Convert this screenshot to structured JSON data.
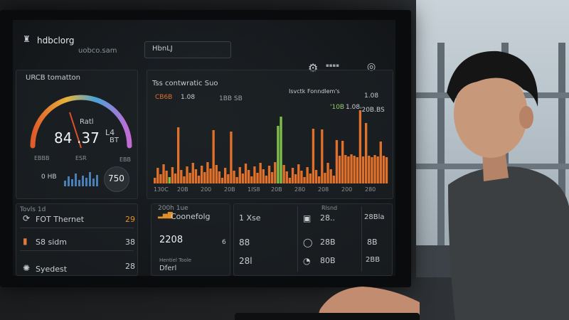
{
  "header": {
    "app_name": "hdbclorg",
    "sub_title": "uobco.sam",
    "search_value": "HbnLJ"
  },
  "gauge_panel": {
    "title": "URCB tomatton",
    "reading": "84",
    "reading2": ".37",
    "unit": "L4",
    "sub": "Ratl",
    "sub2": "BT",
    "tick_left": "EBBB",
    "tick_mid": "ESR",
    "tick_right": "EBB",
    "mini_label": "0 HB",
    "badge_value": "750"
  },
  "histogram_panel": {
    "title": "Tss contwratic Suo",
    "legend_1": "CB6B",
    "legend_2": "1.08",
    "legend_3": "1BB SB",
    "right_title": "Isvctk Fonndlem's",
    "right_value_1": "1.08",
    "right_value_2": "'10B",
    "right_value_3": "1.08",
    "right_value_4": "'20B.BS",
    "x_labels": [
      "130C",
      "20B",
      "200",
      "20B",
      "1IS8",
      "20B",
      "280",
      "208",
      "200",
      "280"
    ]
  },
  "lower_left": {
    "title": "Tovls 1d",
    "rows": [
      {
        "label": "FOT Thernet",
        "value": "29"
      },
      {
        "label": "S8 sidm",
        "value": "38"
      },
      {
        "label": "Syedest",
        "value": "28"
      }
    ]
  },
  "lower_mid": {
    "title": "200h 1ue",
    "item_1": "Coonefolg",
    "value_big": "2208",
    "value_small": "6",
    "caption": "Hentiel Toole",
    "caption_2": "Dferl"
  },
  "lower_right": {
    "col1": [
      "1 Xse",
      "88",
      "28l"
    ],
    "col2": [
      "28..",
      "28B",
      "80B"
    ],
    "col3": [
      "28Bla",
      "8B",
      "2BB"
    ],
    "head": "Rlsnd"
  },
  "colors": {
    "accent_orange": "#e0702a",
    "accent_green": "#7fbf4a",
    "gauge_blue": "#4a7fb5"
  }
}
